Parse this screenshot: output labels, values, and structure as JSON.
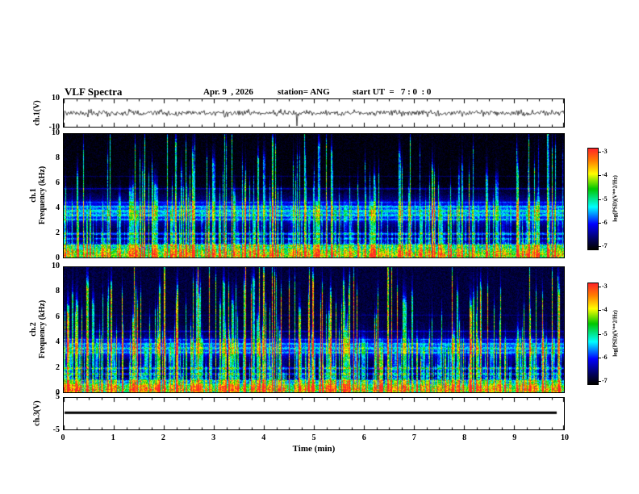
{
  "title": "VLF Spectra",
  "header": {
    "date": "Apr. 9  , 2026",
    "station": "station= ANG",
    "start_ut": "start UT  =   7 : 0  : 0"
  },
  "xaxis": {
    "label": "Time (min)",
    "min": 0,
    "max": 10,
    "major_ticks": [
      0,
      1,
      2,
      3,
      4,
      5,
      6,
      7,
      8,
      9,
      10
    ]
  },
  "panels": {
    "ch1_wave": {
      "ylabel": "ch.1(V)",
      "ymin": -10,
      "ymax": 10,
      "ymax_label": "10",
      "ymin_label": "-10"
    },
    "ch1_spec": {
      "ylabel_channel": "ch.1",
      "ylabel_axis": "Frequency (kHz)",
      "ymin": 0,
      "ymax": 10,
      "ytick_labels": [
        "0",
        "2",
        "4",
        "6",
        "8",
        "10"
      ]
    },
    "ch2_spec": {
      "ylabel_channel": "ch.2",
      "ylabel_axis": "Frequency (kHz)",
      "ymin": 0,
      "ymax": 10,
      "ytick_labels": [
        "0",
        "2",
        "4",
        "6",
        "8",
        "10"
      ]
    },
    "ch3_wave": {
      "ylabel": "ch.3(V)",
      "ymin": -5,
      "ymax": 5,
      "ymax_label": "5",
      "ymin_label": "-5"
    }
  },
  "colorbars": [
    {
      "label": "log(PSD)(V**2/Hz)",
      "tick_labels": [
        "-3",
        "-4",
        "-5",
        "-6",
        "-7"
      ],
      "vmax": -3,
      "vmin": -7
    },
    {
      "label": "log(PSD)(V**2/Hz)",
      "tick_labels": [
        "-3",
        "-4",
        "-5",
        "-6",
        "-7"
      ],
      "vmax": -3,
      "vmin": -7
    }
  ],
  "colormap_stops": [
    {
      "t": 0.0,
      "color": "#000000"
    },
    {
      "t": 0.1,
      "color": "#000060"
    },
    {
      "t": 0.25,
      "color": "#0000ff"
    },
    {
      "t": 0.42,
      "color": "#00ffff"
    },
    {
      "t": 0.6,
      "color": "#00c800"
    },
    {
      "t": 0.75,
      "color": "#ffff00"
    },
    {
      "t": 0.88,
      "color": "#ff8000"
    },
    {
      "t": 1.0,
      "color": "#ff2828"
    }
  ],
  "chart_data": [
    {
      "type": "line",
      "name": "ch1_voltage_waveform",
      "ylabel": "ch.1(V)",
      "ylim": [
        -10,
        10
      ],
      "xlim": [
        0,
        10
      ],
      "description": "Broadband noise voltage trace centered on 0 V, typical amplitude about ±1.5 V with sporadic impulsive spikes, one large negative spike near t = 4.7 min"
    },
    {
      "type": "heatmap",
      "name": "ch1_spectrogram",
      "ylabel": "Frequency (kHz)",
      "ylim": [
        0,
        10
      ],
      "xlim": [
        0,
        10
      ],
      "clim": [
        -7,
        -3
      ],
      "background_log_psd": -6.7,
      "upper_bg_delta": -0.25,
      "bands": [
        [
          0.15,
          0.18,
          0.9
        ],
        [
          0.5,
          0.55,
          2.0
        ],
        [
          1.0,
          0.09,
          0.9
        ],
        [
          1.55,
          0.09,
          0.7
        ],
        [
          1.95,
          0.1,
          1.0
        ],
        [
          3.7,
          0.8,
          1.0
        ],
        [
          3.1,
          0.07,
          0.6
        ],
        [
          3.45,
          0.07,
          0.6
        ],
        [
          3.8,
          0.07,
          0.6
        ],
        [
          4.15,
          0.07,
          0.6
        ],
        [
          4.5,
          0.07,
          0.5
        ],
        [
          5.6,
          0.06,
          0.55
        ],
        [
          6.6,
          0.05,
          0.3
        ]
      ],
      "streaks": {
        "density": 0.62,
        "upper_fade": 0.35,
        "amp_boost": 0
      },
      "description": "Dense vertical sferic streaks (mostly cyan/blue) over near-black background above 6 kHz; bright green band below 1.2 kHz; striped cyan-green emission band 3.0-4.6 kHz; narrow lines near 1.6, 2.0, 5.6 and 6.6 kHz"
    },
    {
      "type": "heatmap",
      "name": "ch2_spectrogram",
      "ylabel": "Frequency (kHz)",
      "ylim": [
        0,
        10
      ],
      "xlim": [
        0,
        10
      ],
      "clim": [
        -7,
        -3
      ],
      "background_log_psd": -6.7,
      "upper_bg_delta": -0.05,
      "bands": [
        [
          0.15,
          0.15,
          0.9
        ],
        [
          0.45,
          0.45,
          1.9
        ],
        [
          0.95,
          0.08,
          0.8
        ],
        [
          1.5,
          0.08,
          0.8
        ],
        [
          1.95,
          0.09,
          0.9
        ],
        [
          3.55,
          0.7,
          0.9
        ],
        [
          3.2,
          0.07,
          0.5
        ],
        [
          3.55,
          0.07,
          0.5
        ],
        [
          3.9,
          0.07,
          0.5
        ],
        [
          4.25,
          0.07,
          0.5
        ],
        [
          4.9,
          0.06,
          0.5
        ],
        [
          6.2,
          0.05,
          0.25
        ]
      ],
      "streaks": {
        "density": 0.68,
        "upper_fade": -0.08,
        "amp_boost": 0.3
      },
      "description": "Denser and brighter sferic streaks than ch.1, green/yellow streaks extending to 10 kHz; bright band below 1 kHz; striped band 3.0-4.5 kHz; narrow lines near 1.5, 2.0 and 4.9 kHz"
    },
    {
      "type": "line",
      "name": "ch3_voltage_waveform",
      "ylabel": "ch.3(V)",
      "ylim": [
        -5,
        5
      ],
      "xlim": [
        0,
        10
      ],
      "flat_value": 0.3,
      "description": "Flat constant thick trace at about +0.3 V across the whole record"
    }
  ]
}
